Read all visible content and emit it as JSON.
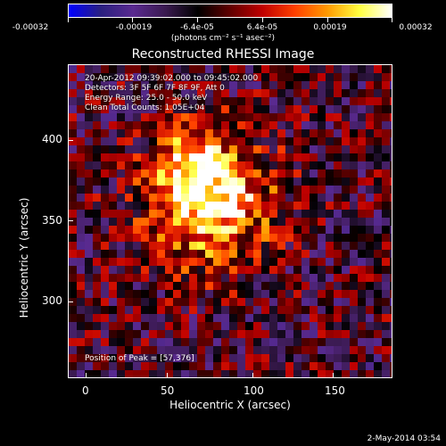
{
  "colorbar": {
    "units": "(photons cm⁻² s⁻¹ asec⁻²)",
    "ticks": [
      "-0.00032",
      "-0.00019",
      "-6.4e-05",
      "6.4e-05",
      "0.00019",
      "0.00032"
    ]
  },
  "header": {
    "title": "Reconstructed RHESSI Image"
  },
  "annotations": {
    "line1": "20-Apr-2012 09:39:02.000 to 09:45:02.000",
    "line2": "Detectors: 3F 5F 6F 7F 8F 9F, Att 0",
    "line3": "Energy Range: 25.0 - 50.0 keV",
    "line4": "Clean     Total Counts: 1.05E+04",
    "peak": "Position of Peak = [57,376]"
  },
  "axes": {
    "xlabel": "Heliocentric X (arcsec)",
    "ylabel": "Heliocentric Y (arcsec)",
    "xticks": [
      "0",
      "50",
      "100",
      "150"
    ],
    "yticks": [
      "400",
      "350",
      "300"
    ]
  },
  "footer": {
    "timestamp": "2-May-2014 03:54"
  },
  "chart_data": {
    "type": "heatmap",
    "title": "Reconstructed RHESSI Image",
    "xlabel": "Heliocentric X (arcsec)",
    "ylabel": "Heliocentric Y (arcsec)",
    "xlim": [
      -10,
      180
    ],
    "ylim": [
      248,
      430
    ],
    "zlim": [
      -0.00032,
      0.00032
    ],
    "peak": [
      57,
      376
    ],
    "colormap": [
      "#0000ff",
      "#2a2080",
      "#5a2a90",
      "#3a1a50",
      "#000000",
      "#600000",
      "#c00000",
      "#ff4000",
      "#ff9900",
      "#ffff40",
      "#ffffff"
    ]
  }
}
